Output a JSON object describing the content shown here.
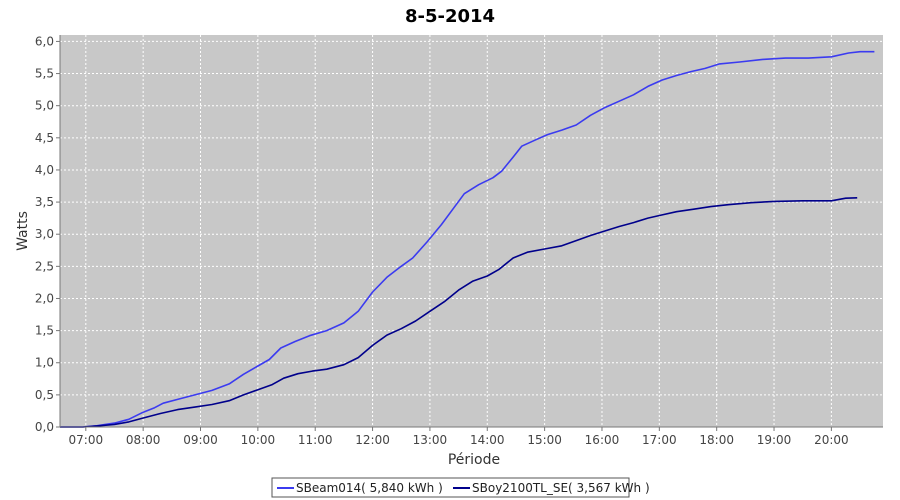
{
  "chart_data": {
    "type": "line",
    "title": "8-5-2014",
    "xlabel": "Période",
    "ylabel": "Watts",
    "xlim": [
      6.55,
      20.9
    ],
    "ylim": [
      0,
      6.1
    ],
    "x_ticks": [
      "07:00",
      "08:00",
      "09:00",
      "10:00",
      "11:00",
      "12:00",
      "13:00",
      "14:00",
      "15:00",
      "16:00",
      "17:00",
      "18:00",
      "19:00",
      "20:00"
    ],
    "y_ticks": [
      "0,0",
      "0,5",
      "1,0",
      "1,5",
      "2,0",
      "2,5",
      "3,0",
      "3,5",
      "4,0",
      "4,5",
      "5,0",
      "5,5",
      "6,0"
    ],
    "grid": true,
    "legend_position": "bottom",
    "series": [
      {
        "name": "SBeam014( 5,840 kWh )",
        "color": "#3b3bf0",
        "points": [
          [
            6.55,
            0
          ],
          [
            6.95,
            0
          ],
          [
            7.2,
            0.02
          ],
          [
            7.5,
            0.06
          ],
          [
            7.75,
            0.12
          ],
          [
            8.0,
            0.23
          ],
          [
            8.2,
            0.3
          ],
          [
            8.35,
            0.37
          ],
          [
            8.6,
            0.43
          ],
          [
            8.9,
            0.5
          ],
          [
            9.2,
            0.57
          ],
          [
            9.5,
            0.67
          ],
          [
            9.75,
            0.82
          ],
          [
            10.0,
            0.95
          ],
          [
            10.2,
            1.05
          ],
          [
            10.4,
            1.23
          ],
          [
            10.65,
            1.33
          ],
          [
            10.9,
            1.42
          ],
          [
            11.2,
            1.5
          ],
          [
            11.5,
            1.62
          ],
          [
            11.75,
            1.8
          ],
          [
            12.0,
            2.1
          ],
          [
            12.25,
            2.33
          ],
          [
            12.5,
            2.5
          ],
          [
            12.7,
            2.63
          ],
          [
            12.95,
            2.88
          ],
          [
            13.2,
            3.15
          ],
          [
            13.45,
            3.45
          ],
          [
            13.6,
            3.63
          ],
          [
            13.85,
            3.77
          ],
          [
            14.1,
            3.88
          ],
          [
            14.25,
            3.98
          ],
          [
            14.45,
            4.2
          ],
          [
            14.6,
            4.37
          ],
          [
            14.85,
            4.47
          ],
          [
            15.05,
            4.55
          ],
          [
            15.3,
            4.62
          ],
          [
            15.55,
            4.7
          ],
          [
            15.8,
            4.85
          ],
          [
            16.05,
            4.97
          ],
          [
            16.3,
            5.07
          ],
          [
            16.55,
            5.17
          ],
          [
            16.8,
            5.3
          ],
          [
            17.05,
            5.4
          ],
          [
            17.3,
            5.47
          ],
          [
            17.55,
            5.53
          ],
          [
            17.8,
            5.58
          ],
          [
            18.05,
            5.65
          ],
          [
            18.4,
            5.68
          ],
          [
            18.8,
            5.72
          ],
          [
            19.2,
            5.74
          ],
          [
            19.6,
            5.74
          ],
          [
            20.0,
            5.76
          ],
          [
            20.3,
            5.82
          ],
          [
            20.5,
            5.84
          ],
          [
            20.75,
            5.84
          ]
        ]
      },
      {
        "name": "SBoy2100TL_SE( 3,567 kWh )",
        "color": "#00008b",
        "points": [
          [
            6.55,
            0
          ],
          [
            6.95,
            0
          ],
          [
            7.25,
            0.02
          ],
          [
            7.5,
            0.04
          ],
          [
            7.75,
            0.08
          ],
          [
            8.0,
            0.14
          ],
          [
            8.3,
            0.21
          ],
          [
            8.6,
            0.27
          ],
          [
            8.9,
            0.31
          ],
          [
            9.2,
            0.35
          ],
          [
            9.5,
            0.41
          ],
          [
            9.75,
            0.5
          ],
          [
            10.0,
            0.58
          ],
          [
            10.25,
            0.66
          ],
          [
            10.45,
            0.76
          ],
          [
            10.7,
            0.83
          ],
          [
            10.95,
            0.87
          ],
          [
            11.2,
            0.9
          ],
          [
            11.5,
            0.97
          ],
          [
            11.75,
            1.08
          ],
          [
            12.0,
            1.27
          ],
          [
            12.25,
            1.43
          ],
          [
            12.5,
            1.53
          ],
          [
            12.75,
            1.65
          ],
          [
            13.0,
            1.8
          ],
          [
            13.25,
            1.95
          ],
          [
            13.5,
            2.13
          ],
          [
            13.75,
            2.27
          ],
          [
            14.0,
            2.35
          ],
          [
            14.2,
            2.45
          ],
          [
            14.45,
            2.63
          ],
          [
            14.7,
            2.72
          ],
          [
            15.0,
            2.77
          ],
          [
            15.3,
            2.82
          ],
          [
            15.55,
            2.9
          ],
          [
            15.8,
            2.98
          ],
          [
            16.05,
            3.05
          ],
          [
            16.3,
            3.12
          ],
          [
            16.55,
            3.18
          ],
          [
            16.8,
            3.25
          ],
          [
            17.05,
            3.3
          ],
          [
            17.3,
            3.35
          ],
          [
            17.6,
            3.39
          ],
          [
            17.9,
            3.43
          ],
          [
            18.2,
            3.46
          ],
          [
            18.6,
            3.49
          ],
          [
            19.0,
            3.51
          ],
          [
            19.5,
            3.52
          ],
          [
            20.0,
            3.52
          ],
          [
            20.25,
            3.56
          ],
          [
            20.45,
            3.567
          ]
        ]
      }
    ]
  }
}
